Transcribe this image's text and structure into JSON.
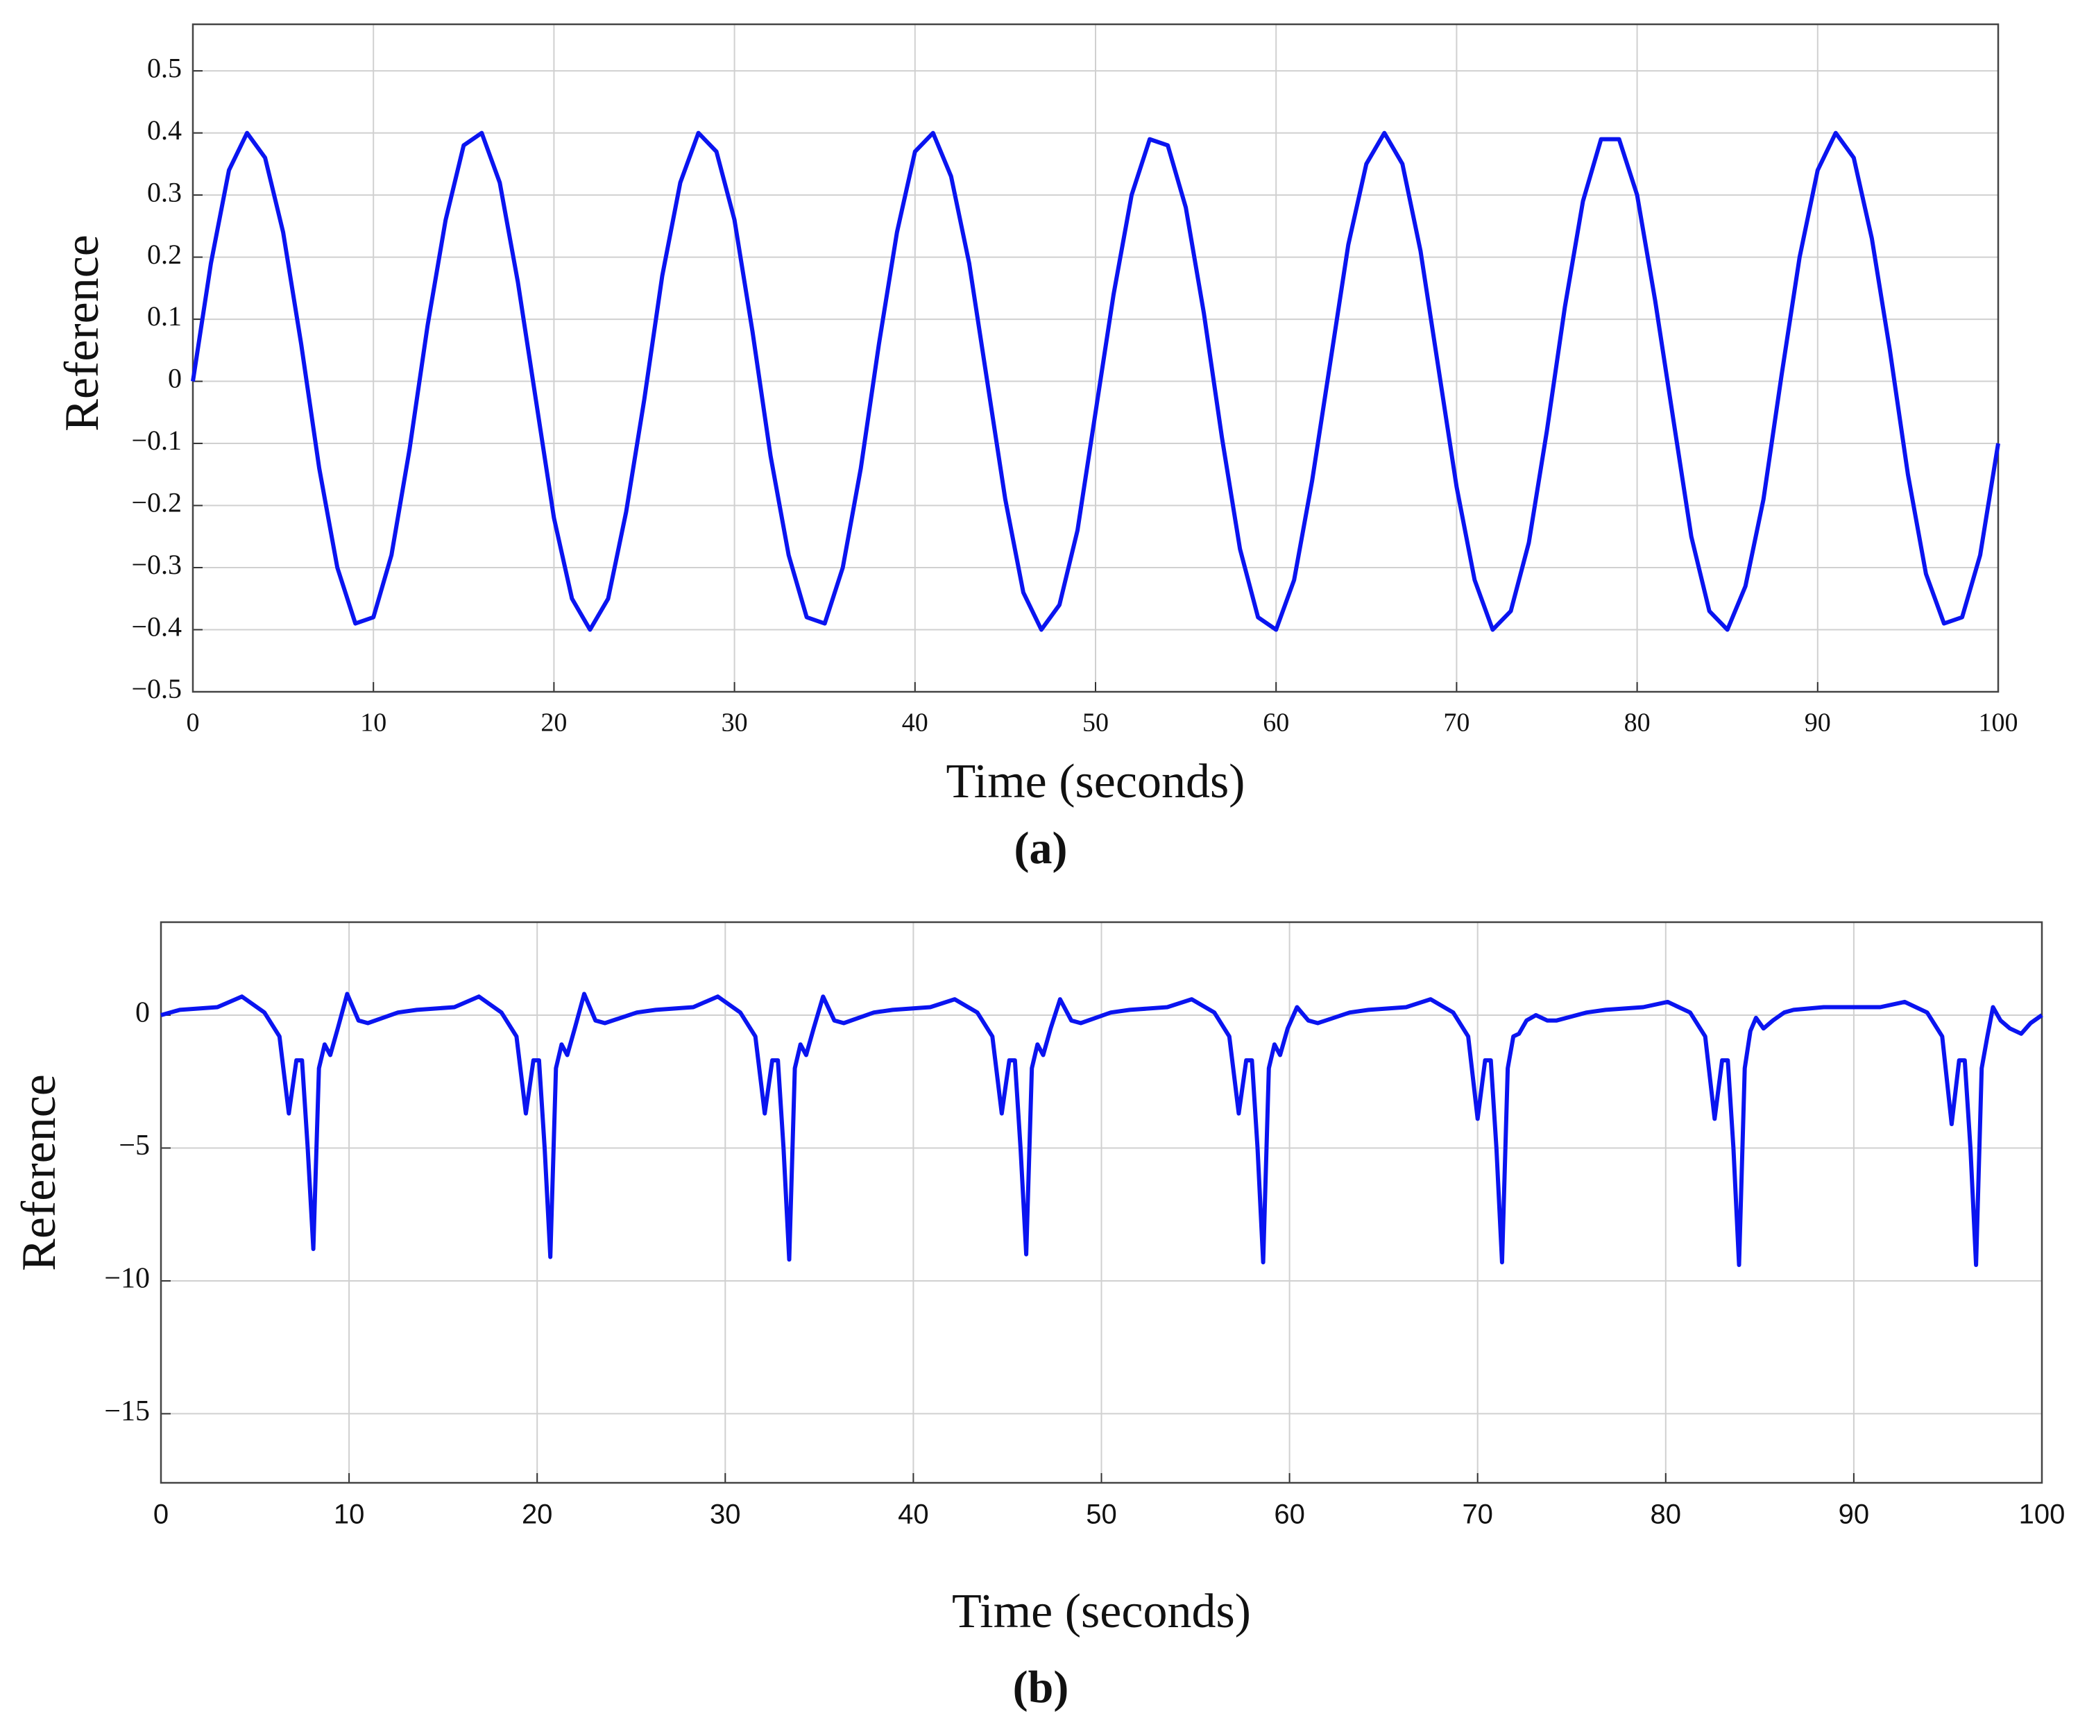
{
  "chart_data": [
    {
      "type": "line",
      "caption": "(a)",
      "x_label": "Time (seconds)",
      "y_label": "Reference",
      "x": [
        0,
        1,
        2,
        3,
        4,
        5,
        6,
        7,
        8,
        9,
        10,
        11,
        12,
        13,
        14,
        15,
        16,
        17,
        18,
        19,
        20,
        21,
        22,
        23,
        24,
        25,
        26,
        27,
        28,
        29,
        30,
        31,
        32,
        33,
        34,
        35,
        36,
        37,
        38,
        39,
        40,
        41,
        42,
        43,
        44,
        45,
        46,
        47,
        48,
        49,
        50,
        51,
        52,
        53,
        54,
        55,
        56,
        57,
        58,
        59,
        60,
        61,
        62,
        63,
        64,
        65,
        66,
        67,
        68,
        69,
        70,
        71,
        72,
        73,
        74,
        75,
        76,
        77,
        78,
        79,
        80,
        81,
        82,
        83,
        84,
        85,
        86,
        87,
        88,
        89,
        90,
        91,
        92,
        93,
        94,
        95,
        96,
        97,
        98,
        99,
        100
      ],
      "values": [
        0,
        0.19,
        0.34,
        0.4,
        0.36,
        0.24,
        0.06,
        -0.14,
        -0.3,
        -0.39,
        -0.38,
        -0.28,
        -0.11,
        0.09,
        0.26,
        0.38,
        0.4,
        0.32,
        0.16,
        -0.03,
        -0.22,
        -0.35,
        -0.4,
        -0.35,
        -0.21,
        -0.03,
        0.17,
        0.32,
        0.4,
        0.37,
        0.26,
        0.08,
        -0.12,
        -0.28,
        -0.38,
        -0.39,
        -0.3,
        -0.14,
        0.06,
        0.24,
        0.37,
        0.4,
        0.33,
        0.19,
        0.0,
        -0.19,
        -0.34,
        -0.4,
        -0.36,
        -0.24,
        -0.05,
        0.14,
        0.3,
        0.39,
        0.38,
        0.28,
        0.11,
        -0.09,
        -0.27,
        -0.38,
        -0.4,
        -0.32,
        -0.16,
        0.03,
        0.22,
        0.35,
        0.4,
        0.35,
        0.21,
        0.02,
        -0.17,
        -0.32,
        -0.4,
        -0.37,
        -0.26,
        -0.08,
        0.12,
        0.29,
        0.39,
        0.39,
        0.3,
        0.13,
        -0.06,
        -0.25,
        -0.37,
        -0.4,
        -0.33,
        -0.19,
        0.01,
        0.2,
        0.34,
        0.4,
        0.36,
        0.23,
        0.05,
        -0.15,
        -0.31,
        -0.39,
        -0.38,
        -0.28,
        -0.1
      ],
      "color": "#0a14f0",
      "xlim": [
        0,
        100
      ],
      "xticks": [
        0,
        10,
        20,
        30,
        40,
        50,
        60,
        70,
        80,
        90,
        100
      ],
      "ylim": [
        -0.5,
        0.575
      ],
      "yticks": [
        {
          "value": -0.5,
          "label": "−0.5"
        },
        {
          "value": -0.4,
          "label": "−0.4"
        },
        {
          "value": -0.3,
          "label": "−0.3"
        },
        {
          "value": -0.2,
          "label": "−0.2"
        },
        {
          "value": -0.1,
          "label": "−0.1"
        },
        0,
        0.1,
        0.2,
        0.3,
        0.4,
        0.5
      ],
      "grid": true
    },
    {
      "type": "line",
      "caption": "(b)",
      "x_label": "Time (seconds)",
      "y_label": "Reference",
      "x": [
        0,
        1,
        3,
        4.3,
        5.5,
        6.3,
        6.8,
        7.2,
        7.5,
        7.8,
        8.1,
        8.4,
        8.7,
        9,
        9.4,
        9.9,
        10.5,
        11,
        12.6,
        13.6,
        15.6,
        16.9,
        18.1,
        18.9,
        19.4,
        19.8,
        20.1,
        20.4,
        20.7,
        21,
        21.3,
        21.6,
        22,
        22.5,
        23.1,
        23.6,
        25.3,
        26.3,
        28.3,
        29.6,
        30.8,
        31.6,
        32.1,
        32.5,
        32.8,
        33.1,
        33.4,
        33.7,
        34,
        34.3,
        34.7,
        35.2,
        35.8,
        36.3,
        37.9,
        38.9,
        40.9,
        42.2,
        43.4,
        44.2,
        44.7,
        45.1,
        45.4,
        45.7,
        46,
        46.3,
        46.6,
        46.9,
        47.3,
        47.8,
        48.4,
        48.9,
        50.5,
        51.5,
        53.5,
        54.8,
        56,
        56.8,
        57.3,
        57.7,
        58,
        58.3,
        58.6,
        58.9,
        59.2,
        59.5,
        59.9,
        60.4,
        61,
        61.5,
        63.2,
        64.2,
        66.2,
        67.5,
        68.7,
        69.5,
        70,
        70.4,
        70.7,
        71,
        71.3,
        71.6,
        71.9,
        72.2,
        72.6,
        73.1,
        73.7,
        74.2,
        75.8,
        76.8,
        78.8,
        80.1,
        81.3,
        82.1,
        82.6,
        83,
        83.3,
        83.6,
        83.9,
        84.2,
        84.5,
        84.8,
        85.2,
        85.7,
        86.3,
        86.8,
        88.4,
        89.4,
        91.4,
        92.7,
        93.9,
        94.7,
        95.2,
        95.6,
        95.9,
        96.2,
        96.5,
        96.8,
        97.1,
        97.4,
        97.8,
        98.3,
        98.9,
        99.4,
        100
      ],
      "values": [
        0,
        0.2,
        0.3,
        0.7,
        0.1,
        -0.8,
        -3.7,
        -1.7,
        -1.7,
        -5,
        -8.8,
        -2,
        -1.1,
        -1.5,
        -0.5,
        0.8,
        -0.2,
        -0.3,
        0.1,
        0.2,
        0.3,
        0.7,
        0.1,
        -0.8,
        -3.7,
        -1.7,
        -1.7,
        -5,
        -9.1,
        -2,
        -1.1,
        -1.5,
        -0.5,
        0.8,
        -0.2,
        -0.3,
        0.1,
        0.2,
        0.3,
        0.7,
        0.1,
        -0.8,
        -3.7,
        -1.7,
        -1.7,
        -5,
        -9.2,
        -2,
        -1.1,
        -1.5,
        -0.5,
        0.7,
        -0.2,
        -0.3,
        0.1,
        0.2,
        0.3,
        0.6,
        0.1,
        -0.8,
        -3.7,
        -1.7,
        -1.7,
        -5,
        -9,
        -2,
        -1.1,
        -1.5,
        -0.5,
        0.6,
        -0.2,
        -0.3,
        0.1,
        0.2,
        0.3,
        0.6,
        0.1,
        -0.8,
        -3.7,
        -1.7,
        -1.7,
        -5,
        -9.3,
        -2,
        -1.1,
        -1.5,
        -0.5,
        0.3,
        -0.2,
        -0.3,
        0.1,
        0.2,
        0.3,
        0.6,
        0.1,
        -0.8,
        -3.9,
        -1.7,
        -1.7,
        -5,
        -9.3,
        -2,
        -0.8,
        -0.7,
        -0.2,
        0,
        -0.2,
        -0.2,
        0.1,
        0.2,
        0.3,
        0.5,
        0.1,
        -0.8,
        -3.9,
        -1.7,
        -1.7,
        -5,
        -9.4,
        -2,
        -0.6,
        -0.1,
        -0.5,
        -0.2,
        0.1,
        0.2,
        0.3,
        0.3,
        0.3,
        0.5,
        0.1,
        -0.8,
        -4.1,
        -1.7,
        -1.7,
        -5,
        -9.4,
        -2,
        -0.8,
        0.3,
        -0.2,
        -0.5,
        -0.7,
        -0.3,
        0
      ],
      "color": "#0a14f0",
      "xlim": [
        0,
        100
      ],
      "xticks": [
        0,
        10,
        20,
        30,
        40,
        50,
        60,
        70,
        80,
        90,
        100
      ],
      "ylim": [
        -17.6,
        3.5
      ],
      "yticks": [
        {
          "value": -15,
          "label": "−15"
        },
        {
          "value": -10,
          "label": "−10"
        },
        {
          "value": -5,
          "label": "−5"
        },
        0
      ],
      "grid": true
    }
  ]
}
